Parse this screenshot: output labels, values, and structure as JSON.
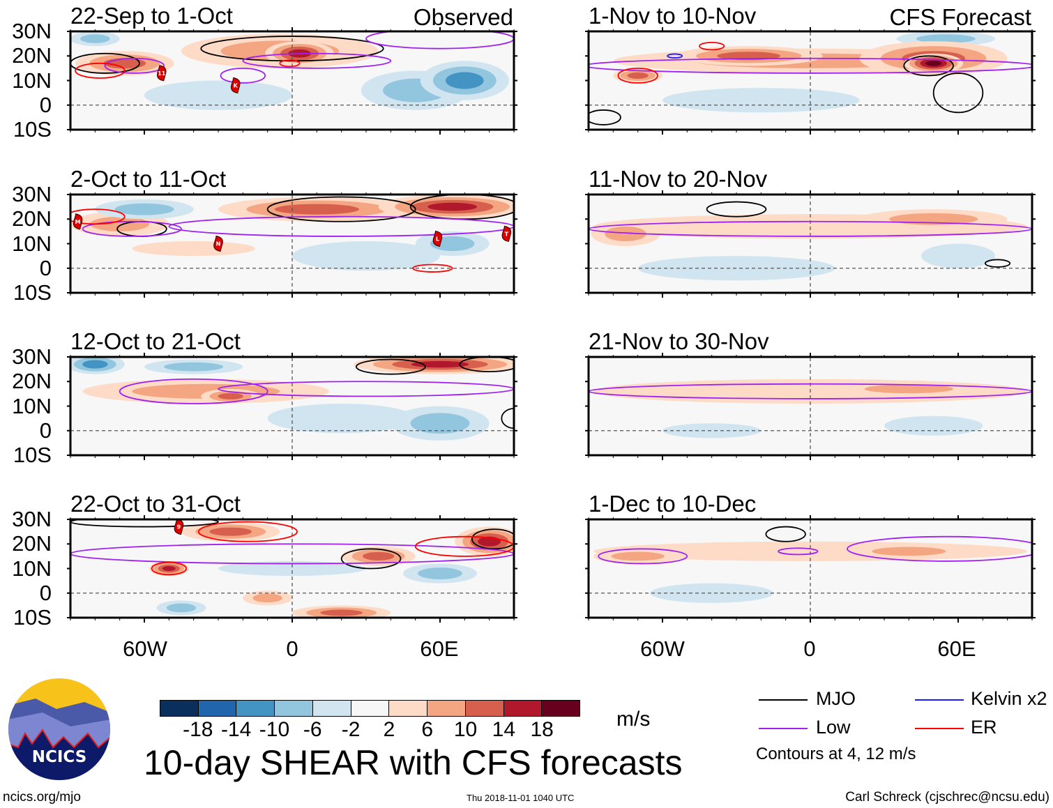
{
  "footer": {
    "title": "10-day SHEAR with CFS forecasts",
    "units": "m/s",
    "url": "ncics.org/mjo",
    "timestamp": "Thu 2018-11-01 1040 UTC",
    "author": "Carl Schreck (cjschrec@ncsu.edu)",
    "logo_text": "NCICS",
    "contour_note": "Contours at 4, 12 m/s"
  },
  "legend": [
    {
      "label": "MJO",
      "color": "#000000"
    },
    {
      "label": "Kelvin x2",
      "color": "#1a1aff"
    },
    {
      "label": "Low",
      "color": "#a020f0"
    },
    {
      "label": "ER",
      "color": "#ff0000"
    }
  ],
  "colorbar": {
    "colors": [
      "#0a2f5c",
      "#2166ac",
      "#4393c3",
      "#92c5de",
      "#d1e5f0",
      "#f7f7f7",
      "#fddbc7",
      "#f4a582",
      "#d6604d",
      "#b2182b",
      "#67001f"
    ],
    "ticks": [
      "-18",
      "-14",
      "-10",
      "-6",
      "-2",
      "2",
      "6",
      "10",
      "14",
      "18"
    ]
  },
  "axes": {
    "lat_labels": [
      "30N",
      "20N",
      "10N",
      "0",
      "10S"
    ],
    "lon_labels": [
      "60W",
      "0",
      "60E"
    ],
    "lon_range": [
      -90,
      90
    ],
    "lat_range": [
      -10,
      30
    ]
  },
  "chart_data": [
    {
      "title": "22-Sep to 1-Oct",
      "label": "Observed",
      "anomalies": [
        {
          "lon": -68,
          "lat": 17,
          "rlon": 20,
          "rlat": 5,
          "value": 10
        },
        {
          "lon": -5,
          "lat": 22,
          "rlon": 40,
          "rlat": 7,
          "value": 6
        },
        {
          "lon": 3,
          "lat": 21,
          "rlon": 14,
          "rlat": 5,
          "value": 14
        },
        {
          "lon": 70,
          "lat": 10,
          "rlon": 18,
          "rlat": 8,
          "value": -10
        },
        {
          "lon": 50,
          "lat": 6,
          "rlon": 22,
          "rlat": 8,
          "value": -6
        },
        {
          "lon": -30,
          "lat": 4,
          "rlon": 30,
          "rlat": 6,
          "value": -2
        },
        {
          "lon": -80,
          "lat": 27,
          "rlon": 10,
          "rlat": 3,
          "value": -6
        }
      ],
      "contours": [
        {
          "type": "MJO",
          "lon": -76,
          "lat": 17,
          "rlon": 14,
          "rlat": 4
        },
        {
          "type": "MJO",
          "lon": 0,
          "lat": 23,
          "rlon": 37,
          "rlat": 5
        },
        {
          "type": "Low",
          "lon": -64,
          "lat": 16,
          "rlon": 12,
          "rlat": 3
        },
        {
          "type": "Low",
          "lon": -20,
          "lat": 12,
          "rlon": 9,
          "rlat": 3
        },
        {
          "type": "Low",
          "lon": 10,
          "lat": 18,
          "rlon": 30,
          "rlat": 3
        },
        {
          "type": "Low",
          "lon": 60,
          "lat": 27,
          "rlon": 30,
          "rlat": 4
        },
        {
          "type": "ER",
          "lon": -78,
          "lat": 14,
          "rlon": 10,
          "rlat": 3
        },
        {
          "type": "ER",
          "lon": -1,
          "lat": 17,
          "rlon": 4,
          "rlat": 1.3
        }
      ],
      "storms": [
        {
          "lon": -53,
          "lat": 13,
          "label": "11"
        },
        {
          "lon": -23,
          "lat": 8,
          "label": "K"
        }
      ]
    },
    {
      "title": "1-Nov to 10-Nov",
      "label": "CFS Forecast",
      "anomalies": [
        {
          "lon": 0,
          "lat": 18,
          "rlon": 80,
          "rlat": 5,
          "value": 6
        },
        {
          "lon": -25,
          "lat": 20,
          "rlon": 30,
          "rlat": 4,
          "value": 10
        },
        {
          "lon": 50,
          "lat": 19,
          "rlon": 30,
          "rlat": 7,
          "value": 10
        },
        {
          "lon": 50,
          "lat": 17,
          "rlon": 12,
          "rlat": 4,
          "value": 18
        },
        {
          "lon": -70,
          "lat": 12,
          "rlon": 10,
          "rlat": 3,
          "value": 10
        },
        {
          "lon": -20,
          "lat": 2,
          "rlon": 40,
          "rlat": 5,
          "value": -2
        },
        {
          "lon": 55,
          "lat": 27,
          "rlon": 20,
          "rlat": 3,
          "value": -6
        }
      ],
      "contours": [
        {
          "type": "MJO",
          "lon": 48,
          "lat": 16,
          "rlon": 10,
          "rlat": 4
        },
        {
          "type": "MJO",
          "lon": 60,
          "lat": 5,
          "rlon": 10,
          "rlat": 8
        },
        {
          "type": "MJO",
          "lon": -84,
          "lat": -5,
          "rlon": 7,
          "rlat": 3
        },
        {
          "type": "Low",
          "lon": 0,
          "lat": 16,
          "rlon": 92,
          "rlat": 3
        },
        {
          "type": "ER",
          "lon": -70,
          "lat": 12,
          "rlon": 8,
          "rlat": 3
        },
        {
          "type": "ER",
          "lon": -40,
          "lat": 24,
          "rlon": 5,
          "rlat": 1.5
        },
        {
          "type": "Kelvin",
          "lon": -55,
          "lat": 20,
          "rlon": 3,
          "rlat": 0.8
        }
      ],
      "storms": []
    },
    {
      "title": "2-Oct to 11-Oct",
      "label": "",
      "anomalies": [
        {
          "lon": 10,
          "lat": 24,
          "rlon": 40,
          "rlat": 5,
          "value": 10
        },
        {
          "lon": 65,
          "lat": 25,
          "rlon": 30,
          "rlat": 5,
          "value": 14
        },
        {
          "lon": -70,
          "lat": 18,
          "rlon": 20,
          "rlat": 5,
          "value": 6
        },
        {
          "lon": -40,
          "lat": 8,
          "rlon": 25,
          "rlat": 3,
          "value": 2
        },
        {
          "lon": -60,
          "lat": 24,
          "rlon": 20,
          "rlat": 4,
          "value": -6
        },
        {
          "lon": 30,
          "lat": 5,
          "rlon": 30,
          "rlat": 6,
          "value": -2
        },
        {
          "lon": 65,
          "lat": 10,
          "rlon": 15,
          "rlat": 5,
          "value": -6
        }
      ],
      "contours": [
        {
          "type": "MJO",
          "lon": 20,
          "lat": 24,
          "rlon": 30,
          "rlat": 5
        },
        {
          "type": "MJO",
          "lon": 70,
          "lat": 25,
          "rlon": 22,
          "rlat": 5
        },
        {
          "type": "MJO",
          "lon": -61,
          "lat": 16,
          "rlon": 10,
          "rlat": 3
        },
        {
          "type": "Low",
          "lon": -65,
          "lat": 16,
          "rlon": 20,
          "rlat": 3
        },
        {
          "type": "Low",
          "lon": 20,
          "lat": 17,
          "rlon": 70,
          "rlat": 4
        },
        {
          "type": "ER",
          "lon": -80,
          "lat": 21,
          "rlon": 12,
          "rlat": 3
        },
        {
          "type": "ER",
          "lon": 57,
          "lat": 0,
          "rlon": 8,
          "rlat": 1.5
        }
      ],
      "storms": [
        {
          "lon": -87,
          "lat": 19,
          "label": "M"
        },
        {
          "lon": -30,
          "lat": 10,
          "label": "N"
        },
        {
          "lon": 59,
          "lat": 12,
          "label": "L"
        },
        {
          "lon": 87,
          "lat": 14,
          "label": "T"
        }
      ]
    },
    {
      "title": "11-Nov to 20-Nov",
      "label": "",
      "anomalies": [
        {
          "lon": 0,
          "lat": 17,
          "rlon": 88,
          "rlat": 5,
          "value": 2
        },
        {
          "lon": -75,
          "lat": 14,
          "rlon": 14,
          "rlat": 5,
          "value": 6
        },
        {
          "lon": 50,
          "lat": 20,
          "rlon": 30,
          "rlat": 4,
          "value": 6
        },
        {
          "lon": -30,
          "lat": 0,
          "rlon": 40,
          "rlat": 5,
          "value": -2
        },
        {
          "lon": 60,
          "lat": 5,
          "rlon": 15,
          "rlat": 5,
          "value": -2
        }
      ],
      "contours": [
        {
          "type": "MJO",
          "lon": -30,
          "lat": 24,
          "rlon": 12,
          "rlat": 3
        },
        {
          "type": "MJO",
          "lon": 76,
          "lat": 2,
          "rlon": 5,
          "rlat": 1.5
        },
        {
          "type": "Low",
          "lon": 0,
          "lat": 16,
          "rlon": 90,
          "rlat": 3
        }
      ],
      "storms": []
    },
    {
      "title": "12-Oct to 21-Oct",
      "label": "",
      "anomalies": [
        {
          "lon": -35,
          "lat": 16,
          "rlon": 50,
          "rlat": 5,
          "value": 6
        },
        {
          "lon": -25,
          "lat": 14,
          "rlon": 12,
          "rlat": 3,
          "value": 10
        },
        {
          "lon": 60,
          "lat": 27,
          "rlon": 35,
          "rlat": 4,
          "value": 14
        },
        {
          "lon": 60,
          "lat": 3,
          "rlon": 20,
          "rlat": 7,
          "value": -6
        },
        {
          "lon": -80,
          "lat": 27,
          "rlon": 12,
          "rlat": 4,
          "value": -10
        },
        {
          "lon": -40,
          "lat": 26,
          "rlon": 20,
          "rlat": 3,
          "value": -6
        },
        {
          "lon": 20,
          "lat": 5,
          "rlon": 30,
          "rlat": 6,
          "value": -2
        }
      ],
      "contours": [
        {
          "type": "MJO",
          "lon": 40,
          "lat": 26,
          "rlon": 14,
          "rlat": 3
        },
        {
          "type": "MJO",
          "lon": 80,
          "lat": 27,
          "rlon": 12,
          "rlat": 3
        },
        {
          "type": "MJO",
          "lon": 90,
          "lat": 5,
          "rlon": 5,
          "rlat": 4
        },
        {
          "type": "Low",
          "lon": -40,
          "lat": 16,
          "rlon": 30,
          "rlat": 5
        },
        {
          "type": "Low",
          "lon": 30,
          "lat": 17,
          "rlon": 60,
          "rlat": 3
        }
      ],
      "storms": []
    },
    {
      "title": "21-Nov to 30-Nov",
      "label": "",
      "anomalies": [
        {
          "lon": 0,
          "lat": 16,
          "rlon": 88,
          "rlat": 5,
          "value": 2
        },
        {
          "lon": 40,
          "lat": 17,
          "rlon": 30,
          "rlat": 3,
          "value": 6
        },
        {
          "lon": -40,
          "lat": 0,
          "rlon": 20,
          "rlat": 3,
          "value": -2
        },
        {
          "lon": 50,
          "lat": 2,
          "rlon": 20,
          "rlat": 4,
          "value": -2
        }
      ],
      "contours": [
        {
          "type": "Low",
          "lon": 0,
          "lat": 16,
          "rlon": 90,
          "rlat": 3
        }
      ],
      "storms": []
    },
    {
      "title": "22-Oct to 31-Oct",
      "label": "",
      "anomalies": [
        {
          "lon": -25,
          "lat": 25,
          "rlon": 20,
          "rlat": 4,
          "value": 10
        },
        {
          "lon": -50,
          "lat": 10,
          "rlon": 8,
          "rlat": 3,
          "value": 14
        },
        {
          "lon": 35,
          "lat": 15,
          "rlon": 15,
          "rlat": 4,
          "value": 10
        },
        {
          "lon": 80,
          "lat": 21,
          "rlon": 14,
          "rlat": 6,
          "value": 14
        },
        {
          "lon": 20,
          "lat": -8,
          "rlon": 20,
          "rlat": 3,
          "value": 10
        },
        {
          "lon": -10,
          "lat": -2,
          "rlon": 10,
          "rlat": 3,
          "value": 6
        },
        {
          "lon": 0,
          "lat": 10,
          "rlon": 30,
          "rlat": 3,
          "value": -2
        },
        {
          "lon": 60,
          "lat": 8,
          "rlon": 15,
          "rlat": 4,
          "value": -6
        },
        {
          "lon": -45,
          "lat": -6,
          "rlon": 10,
          "rlat": 3,
          "value": -6
        }
      ],
      "contours": [
        {
          "type": "MJO",
          "lon": 32,
          "lat": 14,
          "rlon": 12,
          "rlat": 4
        },
        {
          "type": "MJO",
          "lon": 82,
          "lat": 22,
          "rlon": 9,
          "rlat": 4
        },
        {
          "type": "MJO",
          "lon": -60,
          "lat": 29,
          "rlon": 30,
          "rlat": 2
        },
        {
          "type": "Low",
          "lon": 0,
          "lat": 16,
          "rlon": 90,
          "rlat": 4
        },
        {
          "type": "ER",
          "lon": -50,
          "lat": 10,
          "rlon": 7,
          "rlat": 2.5
        },
        {
          "type": "ER",
          "lon": -18,
          "lat": 25,
          "rlon": 20,
          "rlat": 4
        },
        {
          "type": "ER",
          "lon": 70,
          "lat": 19,
          "rlon": 20,
          "rlat": 4
        }
      ],
      "storms": [
        {
          "lon": -46,
          "lat": 27,
          "label": "9"
        }
      ]
    },
    {
      "title": "1-Dec to 10-Dec",
      "label": "",
      "anomalies": [
        {
          "lon": 0,
          "lat": 17,
          "rlon": 88,
          "rlat": 4,
          "value": 2
        },
        {
          "lon": -70,
          "lat": 15,
          "rlon": 18,
          "rlat": 3,
          "value": 6
        },
        {
          "lon": 40,
          "lat": 17,
          "rlon": 25,
          "rlat": 3,
          "value": 6
        },
        {
          "lon": -40,
          "lat": 0,
          "rlon": 25,
          "rlat": 4,
          "value": -2
        }
      ],
      "contours": [
        {
          "type": "MJO",
          "lon": -10,
          "lat": 24,
          "rlon": 8,
          "rlat": 3
        },
        {
          "type": "Low",
          "lon": -68,
          "lat": 15,
          "rlon": 18,
          "rlat": 3
        },
        {
          "type": "Low",
          "lon": -5,
          "lat": 17,
          "rlon": 8,
          "rlat": 1.3
        },
        {
          "type": "Low",
          "lon": 55,
          "lat": 18,
          "rlon": 40,
          "rlat": 5
        }
      ],
      "storms": []
    }
  ]
}
